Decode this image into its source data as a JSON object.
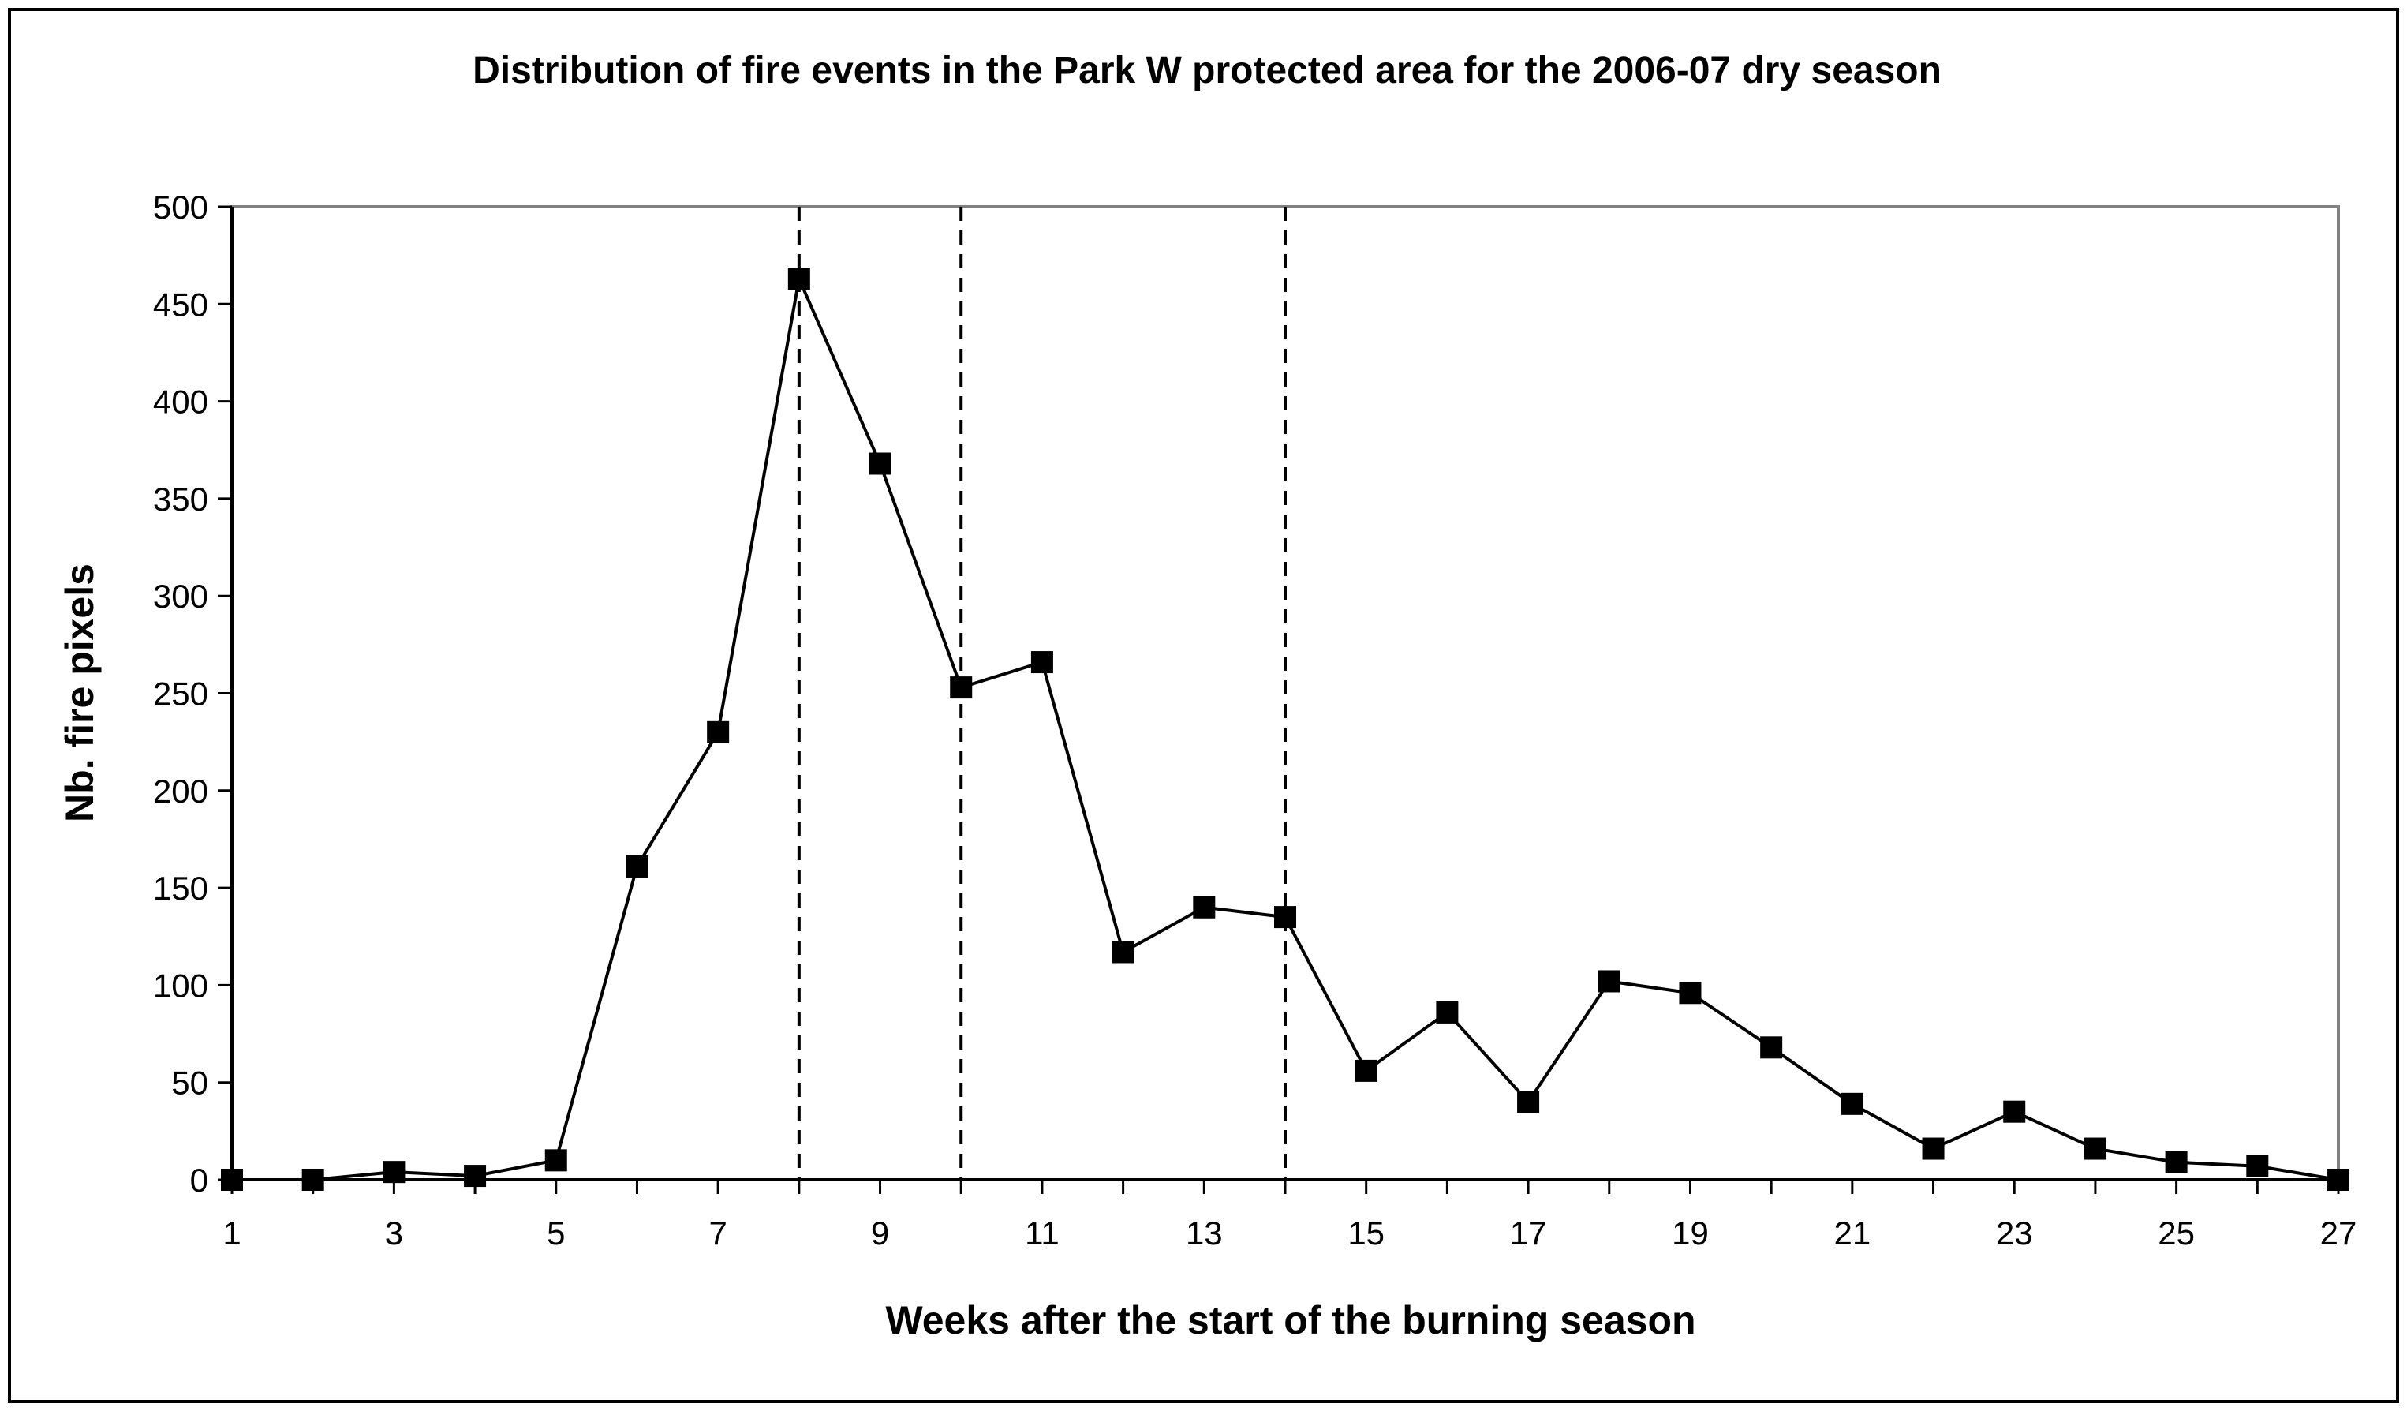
{
  "chart_data": {
    "type": "line",
    "title": "Distribution of fire events in the Park W protected area for the 2006-07 dry season",
    "xlabel": "Weeks after the start of the burning season",
    "ylabel": "Nb. fire pixels",
    "xlim": [
      1,
      27
    ],
    "ylim": [
      0,
      500
    ],
    "x_tick_labels": [
      "1",
      "3",
      "5",
      "7",
      "9",
      "11",
      "13",
      "15",
      "17",
      "19",
      "21",
      "23",
      "25",
      "27"
    ],
    "y_tick_labels": [
      "0",
      "50",
      "100",
      "150",
      "200",
      "250",
      "300",
      "350",
      "400",
      "450",
      "500"
    ],
    "x": [
      1,
      2,
      3,
      4,
      5,
      6,
      7,
      8,
      9,
      10,
      11,
      12,
      13,
      14,
      15,
      16,
      17,
      18,
      19,
      20,
      21,
      22,
      23,
      24,
      25,
      26,
      27
    ],
    "series": [
      {
        "values": [
          0,
          0,
          4,
          2,
          10,
          161,
          230,
          463,
          368,
          253,
          266,
          117,
          140,
          135,
          56,
          86,
          40,
          102,
          96,
          68,
          39,
          16,
          35,
          16,
          9,
          7,
          0
        ],
        "marker": "square",
        "color": "#000000"
      }
    ],
    "reference_lines_x": [
      8,
      10,
      14
    ],
    "reference_line_style": "dashed",
    "grid": false,
    "legend": "none"
  }
}
